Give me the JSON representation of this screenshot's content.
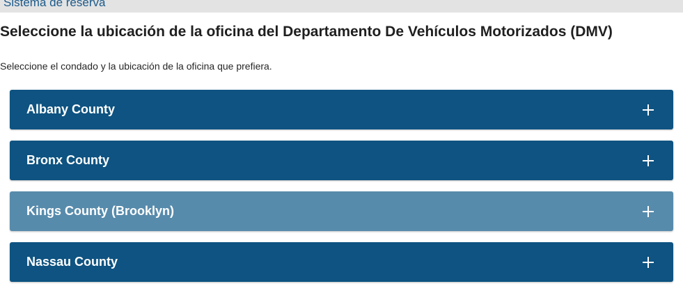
{
  "header": {
    "breadcrumb": "Sistema de reserva"
  },
  "main": {
    "title": "Seleccione la ubicación de la oficina del Departamento De Vehículos Motorizados (DMV)",
    "instructions": "Seleccione el condado y la ubicación de la oficina que prefiera."
  },
  "counties": [
    {
      "label": "Albany County",
      "icon": "plus-icon"
    },
    {
      "label": "Bronx County",
      "icon": "plus-icon"
    },
    {
      "label": "Kings County (Brooklyn)",
      "icon": "plus-icon"
    },
    {
      "label": "Nassau County",
      "icon": "plus-icon"
    }
  ],
  "colors": {
    "panel": "#0e5381",
    "panel_hover": "#578bac",
    "breadcrumb": "#1c5a8a"
  }
}
